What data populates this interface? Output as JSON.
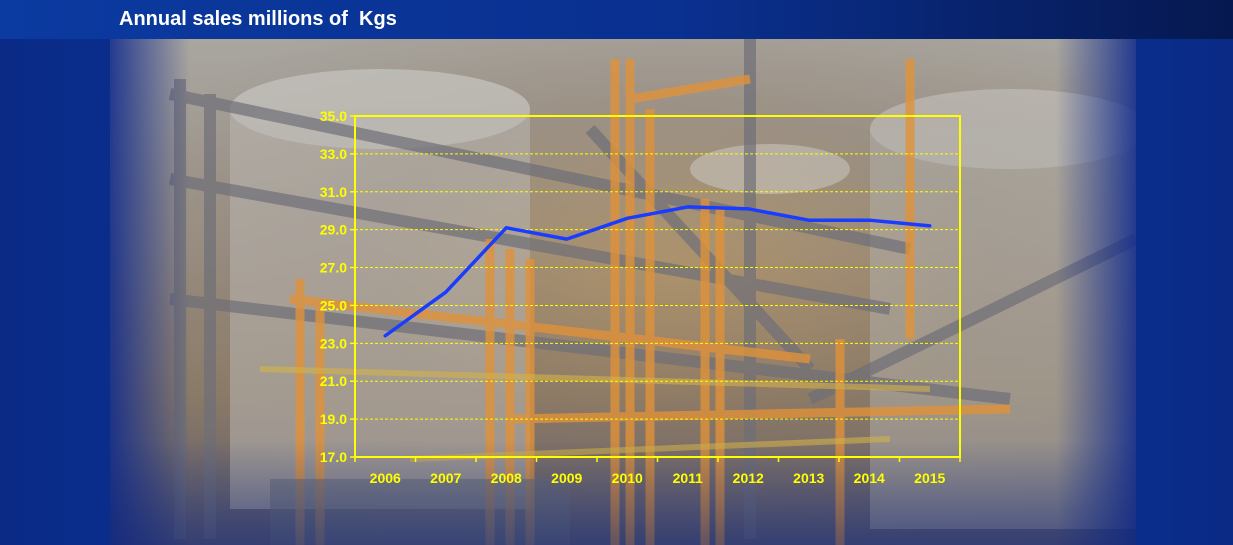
{
  "header": {
    "title": "Annual sales millions of  Kgs"
  },
  "colors": {
    "axis": "#ffff00",
    "grid": "#ffff00",
    "line": "#1a3cff"
  },
  "chart_data": {
    "type": "line",
    "title": "Annual sales millions of  Kgs",
    "xlabel": "",
    "ylabel": "",
    "categories": [
      "2006",
      "2007",
      "2008",
      "2009",
      "2010",
      "2011",
      "2012",
      "2013",
      "2014",
      "2015"
    ],
    "series": [
      {
        "values": [
          23.4,
          25.7,
          29.1,
          28.5,
          29.6,
          30.2,
          30.1,
          29.5,
          29.5,
          29.2
        ]
      }
    ],
    "ylim": [
      17.0,
      35.0
    ],
    "yticks": [
      "17.0",
      "19.0",
      "21.0",
      "23.0",
      "25.0",
      "27.0",
      "29.0",
      "31.0",
      "33.0",
      "35.0"
    ],
    "grid": true,
    "legend": "none"
  }
}
